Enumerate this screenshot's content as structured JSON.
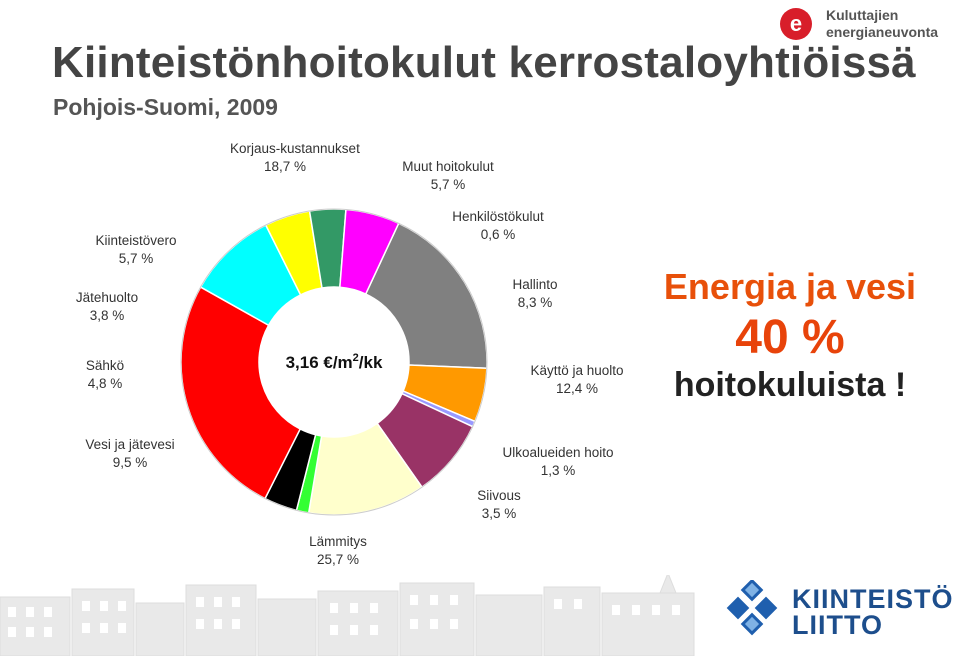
{
  "title": "Kiinteistönhoitokulut kerrostaloyhtiöissä",
  "subtitle": "Pohjois-Suomi, 2009",
  "brand": {
    "line1": "Kuluttajien",
    "line2": "energianeuvonta",
    "mark": "e"
  },
  "callout": {
    "line1": "Energia ja vesi",
    "line2": "40 %",
    "line3": "hoitokuluista !"
  },
  "logo2": {
    "line1": "KIINTEISTÖ",
    "line2": "LIITTO"
  },
  "chart_data": {
    "type": "pie",
    "center_label": {
      "value": "3,16 €/m",
      "sup": "2",
      "unit": "/kk"
    },
    "slices": [
      {
        "name": "Korjaus-kustannukset",
        "value": 18.7,
        "value_label": "18,7 %",
        "color": "#808080"
      },
      {
        "name": "Muut hoitokulut",
        "value": 5.7,
        "value_label": "5,7 %",
        "color": "#ff9900"
      },
      {
        "name": "Henkilöstökulut",
        "value": 0.6,
        "value_label": "0,6 %",
        "color": "#9999ff"
      },
      {
        "name": "Hallinto",
        "value": 8.3,
        "value_label": "8,3 %",
        "color": "#993366"
      },
      {
        "name": "Käyttö ja huolto",
        "value": 12.4,
        "value_label": "12,4 %",
        "color": "#ffffcc"
      },
      {
        "name": "Ulkoalueiden hoito",
        "value": 1.3,
        "value_label": "1,3 %",
        "color": "#33ff33"
      },
      {
        "name": "Siivous",
        "value": 3.5,
        "value_label": "3,5 %",
        "color": "#000000"
      },
      {
        "name": "Lämmitys",
        "value": 25.7,
        "value_label": "25,7 %",
        "color": "#ff0000"
      },
      {
        "name": "Vesi ja jätevesi",
        "value": 9.5,
        "value_label": "9,5 %",
        "color": "#00ffff"
      },
      {
        "name": "Sähkö",
        "value": 4.8,
        "value_label": "4,8 %",
        "color": "#ffff00"
      },
      {
        "name": "Jätehuolto",
        "value": 3.8,
        "value_label": "3,8 %",
        "color": "#339966"
      },
      {
        "name": "Kiinteistövero",
        "value": 5.7,
        "value_label": "5,7 %",
        "color": "#ff00ff"
      }
    ]
  }
}
